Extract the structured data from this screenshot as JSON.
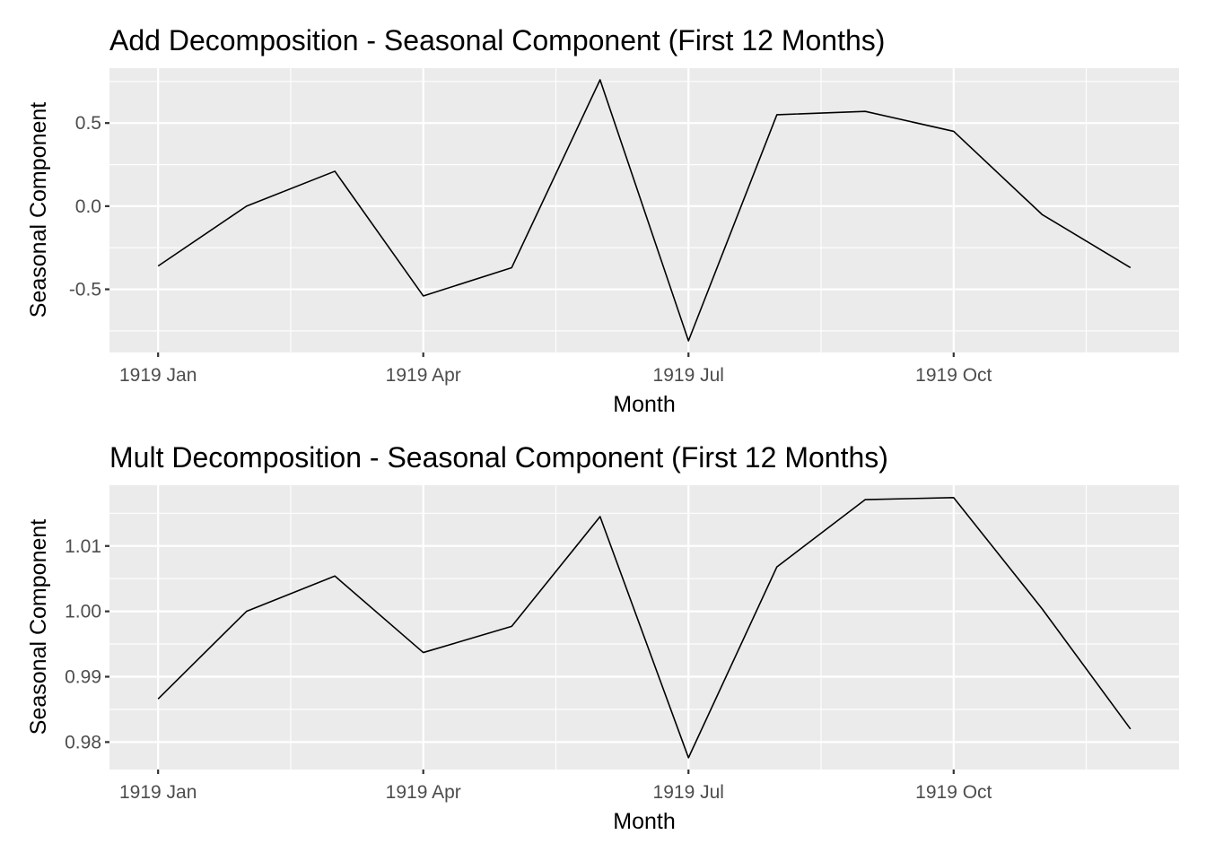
{
  "chart_data": [
    {
      "type": "line",
      "title": "Add Decomposition - Seasonal Component (First 12 Months)",
      "xlabel": "Month",
      "ylabel": "Seasonal Component",
      "x": [
        "1919-01",
        "1919-02",
        "1919-03",
        "1919-04",
        "1919-05",
        "1919-06",
        "1919-07",
        "1919-08",
        "1919-09",
        "1919-10",
        "1919-11",
        "1919-12"
      ],
      "values": [
        -0.36,
        0.0,
        0.21,
        -0.54,
        -0.37,
        0.76,
        -0.81,
        0.55,
        0.57,
        0.45,
        -0.05,
        -0.37
      ],
      "xticks": [
        "1919 Jan",
        "1919 Apr",
        "1919 Jul",
        "1919 Oct"
      ],
      "xtick_months": [
        "1919-01",
        "1919-04",
        "1919-07",
        "1919-10"
      ],
      "yticks": [
        "-0.5",
        "0.0",
        "0.5"
      ],
      "ytick_values": [
        -0.5,
        0.0,
        0.5
      ],
      "ylim": [
        -0.88,
        0.83
      ],
      "grid": true,
      "line_color": "#000000",
      "panel_color": "#ebebeb"
    },
    {
      "type": "line",
      "title": "Mult Decomposition - Seasonal Component (First 12 Months)",
      "xlabel": "Month",
      "ylabel": "Seasonal Component",
      "x": [
        "1919-01",
        "1919-02",
        "1919-03",
        "1919-04",
        "1919-05",
        "1919-06",
        "1919-07",
        "1919-08",
        "1919-09",
        "1919-10",
        "1919-11",
        "1919-12"
      ],
      "values": [
        0.9866,
        1.0,
        1.0054,
        0.9937,
        0.9977,
        1.0145,
        0.9776,
        1.0068,
        1.0171,
        1.0174,
        1.0004,
        0.982
      ],
      "xticks": [
        "1919 Jan",
        "1919 Apr",
        "1919 Jul",
        "1919 Oct"
      ],
      "xtick_months": [
        "1919-01",
        "1919-04",
        "1919-07",
        "1919-10"
      ],
      "yticks": [
        "0.98",
        "0.99",
        "1.00",
        "1.01"
      ],
      "ytick_values": [
        0.98,
        0.99,
        1.0,
        1.01
      ],
      "ylim": [
        0.9758,
        1.0193
      ],
      "grid": true,
      "line_color": "#000000",
      "panel_color": "#ebebeb"
    }
  ]
}
